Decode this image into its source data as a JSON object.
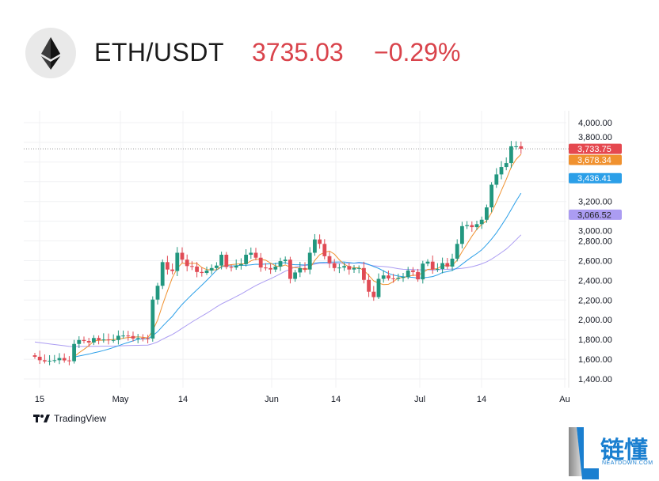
{
  "header": {
    "pair": "ETH/USDT",
    "price": "3735.03",
    "change": "−0.29%",
    "icon": "ethereum-logo"
  },
  "chart_data": {
    "type": "candlestick",
    "x_ticks": [
      "15",
      "May",
      "14",
      "Jun",
      "14",
      "Jul",
      "14",
      "Au"
    ],
    "y_ticks": [
      "4,000.00",
      "3,800.00",
      "3,200.00",
      "3,000.00",
      "2,800.00",
      "2,600.00",
      "2,400.00",
      "2,200.00",
      "2,000.00",
      "1,800.00",
      "1,600.00",
      "1,400.00"
    ],
    "ylim": [
      1400,
      4000
    ],
    "grid": true,
    "start_date": "Apr 14",
    "close": [
      1625,
      1590,
      1578,
      1585,
      1590,
      1612,
      1588,
      1580,
      1755,
      1795,
      1785,
      1770,
      1815,
      1795,
      1800,
      1795,
      1795,
      1838,
      1840,
      1835,
      1810,
      1815,
      1812,
      1810,
      2205,
      2345,
      2585,
      2510,
      2495,
      2680,
      2610,
      2545,
      2540,
      2485,
      2475,
      2500,
      2525,
      2550,
      2660,
      2535,
      2530,
      2550,
      2565,
      2660,
      2680,
      2630,
      2530,
      2525,
      2510,
      2540,
      2595,
      2610,
      2415,
      2480,
      2525,
      2510,
      2680,
      2815,
      2770,
      2645,
      2575,
      2525,
      2530,
      2545,
      2510,
      2525,
      2525,
      2405,
      2285,
      2230,
      2415,
      2450,
      2420,
      2415,
      2425,
      2435,
      2500,
      2485,
      2410,
      2570,
      2590,
      2510,
      2515,
      2575,
      2540,
      2620,
      2770,
      2950,
      2960,
      2940,
      2970,
      3015,
      3140,
      3370,
      3475,
      3550,
      3590,
      3760,
      3760,
      3735
    ],
    "price_labels": [
      {
        "text": "3,733.75",
        "value": 3733.75,
        "color": "#e5484f"
      },
      {
        "text": "3,678.34",
        "value": 3678.34,
        "color": "#f0912f"
      },
      {
        "text": "3,436.41",
        "value": 3436.41,
        "color": "#2b9fe8"
      },
      {
        "text": "3,066.52",
        "value": 3066.52,
        "color": "#ab9cf2"
      }
    ],
    "up_color": "#22977f",
    "down_color": "#e04b55"
  },
  "footer": {
    "tradingview": "TradingView",
    "watermark_cn": "链懂",
    "watermark_en": "NEATDOWN.COM"
  }
}
